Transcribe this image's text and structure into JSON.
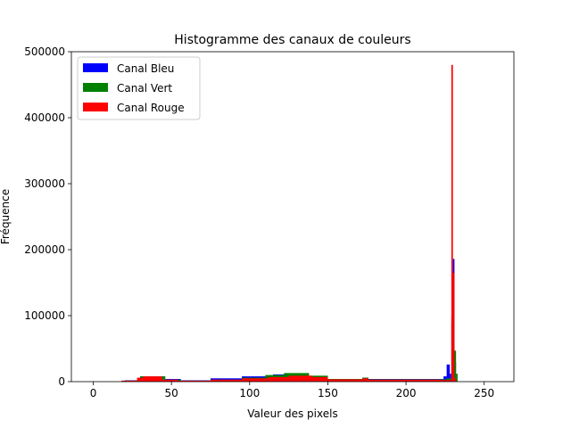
{
  "chart_data": {
    "type": "bar",
    "title": "Histogramme des canaux de couleurs",
    "xlabel": "Valeur des pixels",
    "ylabel": "Fréquence",
    "xlim": [
      -14,
      269
    ],
    "ylim": [
      0,
      500000
    ],
    "x_ticks": [
      0,
      50,
      100,
      150,
      200,
      250
    ],
    "y_ticks": [
      0,
      100000,
      200000,
      300000,
      400000,
      500000
    ],
    "grid": false,
    "legend_position": "top-left",
    "series": [
      {
        "name": "Canal Bleu",
        "color": "#0000ff",
        "segments": [
          {
            "from": 20,
            "to": 30,
            "value": 2000
          },
          {
            "from": 30,
            "to": 46,
            "value": 8000
          },
          {
            "from": 46,
            "to": 56,
            "value": 4000
          },
          {
            "from": 56,
            "to": 75,
            "value": 2000
          },
          {
            "from": 75,
            "to": 95,
            "value": 5000
          },
          {
            "from": 95,
            "to": 115,
            "value": 8000
          },
          {
            "from": 115,
            "to": 130,
            "value": 11000
          },
          {
            "from": 130,
            "to": 150,
            "value": 8000
          },
          {
            "from": 150,
            "to": 172,
            "value": 4000
          },
          {
            "from": 172,
            "to": 176,
            "value": 6000
          },
          {
            "from": 176,
            "to": 224,
            "value": 4000
          },
          {
            "from": 224,
            "to": 226,
            "value": 8000
          },
          {
            "from": 226,
            "to": 228,
            "value": 26000
          },
          {
            "from": 228,
            "to": 229,
            "value": 12000
          },
          {
            "from": 229,
            "to": 230,
            "value": 100000
          },
          {
            "from": 230,
            "to": 231,
            "value": 186000
          },
          {
            "from": 231,
            "to": 232,
            "value": 30000
          }
        ]
      },
      {
        "name": "Canal Vert",
        "color": "#008000",
        "segments": [
          {
            "from": 20,
            "to": 30,
            "value": 1500
          },
          {
            "from": 30,
            "to": 46,
            "value": 8000
          },
          {
            "from": 46,
            "to": 56,
            "value": 3000
          },
          {
            "from": 56,
            "to": 75,
            "value": 1500
          },
          {
            "from": 75,
            "to": 95,
            "value": 3000
          },
          {
            "from": 95,
            "to": 110,
            "value": 6000
          },
          {
            "from": 110,
            "to": 122,
            "value": 10000
          },
          {
            "from": 122,
            "to": 138,
            "value": 13000
          },
          {
            "from": 138,
            "to": 150,
            "value": 9000
          },
          {
            "from": 150,
            "to": 172,
            "value": 4000
          },
          {
            "from": 172,
            "to": 176,
            "value": 6000
          },
          {
            "from": 176,
            "to": 226,
            "value": 3500
          },
          {
            "from": 226,
            "to": 229,
            "value": 5000
          },
          {
            "from": 229,
            "to": 230,
            "value": 90000
          },
          {
            "from": 230,
            "to": 231,
            "value": 160000
          },
          {
            "from": 231,
            "to": 232,
            "value": 47000
          },
          {
            "from": 232,
            "to": 233,
            "value": 12000
          }
        ]
      },
      {
        "name": "Canal Rouge",
        "color": "#ff0000",
        "segments": [
          {
            "from": 18,
            "to": 28,
            "value": 1500
          },
          {
            "from": 28,
            "to": 32,
            "value": 6000
          },
          {
            "from": 32,
            "to": 44,
            "value": 8000
          },
          {
            "from": 44,
            "to": 54,
            "value": 3000
          },
          {
            "from": 54,
            "to": 75,
            "value": 1500
          },
          {
            "from": 75,
            "to": 95,
            "value": 3000
          },
          {
            "from": 95,
            "to": 112,
            "value": 5000
          },
          {
            "from": 112,
            "to": 125,
            "value": 7000
          },
          {
            "from": 125,
            "to": 140,
            "value": 9000
          },
          {
            "from": 140,
            "to": 150,
            "value": 7000
          },
          {
            "from": 150,
            "to": 172,
            "value": 3500
          },
          {
            "from": 172,
            "to": 176,
            "value": 5000
          },
          {
            "from": 176,
            "to": 222,
            "value": 3000
          },
          {
            "from": 222,
            "to": 229,
            "value": 2500
          },
          {
            "from": 229,
            "to": 230,
            "value": 480000
          },
          {
            "from": 230,
            "to": 231,
            "value": 165000
          },
          {
            "from": 231,
            "to": 232,
            "value": 5000
          }
        ]
      }
    ]
  }
}
